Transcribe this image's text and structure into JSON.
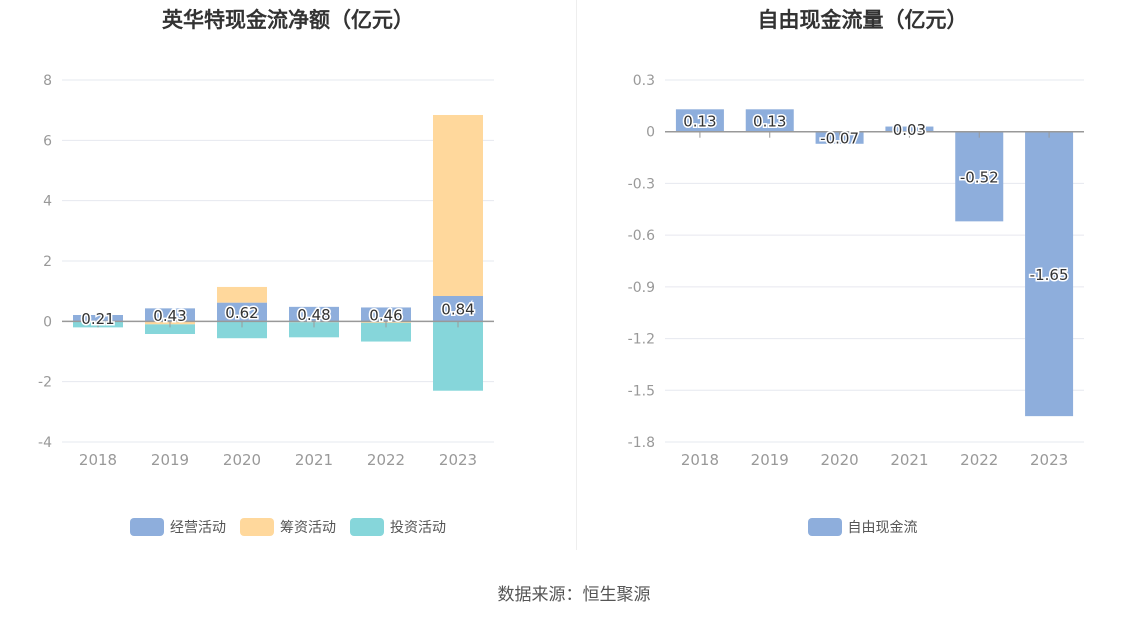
{
  "source_label": "数据来源：恒生聚源",
  "chart_data": [
    {
      "type": "bar",
      "stacked": true,
      "title": "英华特现金流净额（亿元）",
      "categories": [
        "2018",
        "2019",
        "2020",
        "2021",
        "2022",
        "2023"
      ],
      "ylim": [
        -4,
        8
      ],
      "yticks": [
        -4,
        -2,
        0,
        2,
        4,
        6,
        8
      ],
      "grid": true,
      "legend_position": "bottom",
      "series": [
        {
          "name": "经营活动",
          "color": "#8eaedc",
          "values": [
            0.21,
            0.43,
            0.62,
            0.48,
            0.46,
            0.84
          ],
          "labels": [
            "0.21",
            "0.43",
            "0.62",
            "0.48",
            "0.46",
            "0.84"
          ]
        },
        {
          "name": "筹资活动",
          "color": "#ffd89c",
          "values": [
            -0.02,
            -0.1,
            0.52,
            -0.03,
            -0.05,
            6.0
          ]
        },
        {
          "name": "投资活动",
          "color": "#86d6da",
          "values": [
            -0.18,
            -0.32,
            -0.56,
            -0.5,
            -0.62,
            -2.3
          ]
        }
      ]
    },
    {
      "type": "bar",
      "title": "自由现金流量（亿元）",
      "categories": [
        "2018",
        "2019",
        "2020",
        "2021",
        "2022",
        "2023"
      ],
      "ylim": [
        -1.8,
        0.3
      ],
      "yticks": [
        "0.3",
        "0",
        "-0.3",
        "-0.6",
        "-0.9",
        "-1.2",
        "-1.5",
        "-1.8"
      ],
      "grid": true,
      "legend_position": "bottom",
      "series": [
        {
          "name": "自由现金流",
          "color": "#8eaedc",
          "values": [
            0.13,
            0.13,
            -0.07,
            0.03,
            -0.52,
            -1.65
          ],
          "labels": [
            "0.13",
            "0.13",
            "-0.07",
            "0.03",
            "-0.52",
            "-1.65"
          ]
        }
      ]
    }
  ]
}
